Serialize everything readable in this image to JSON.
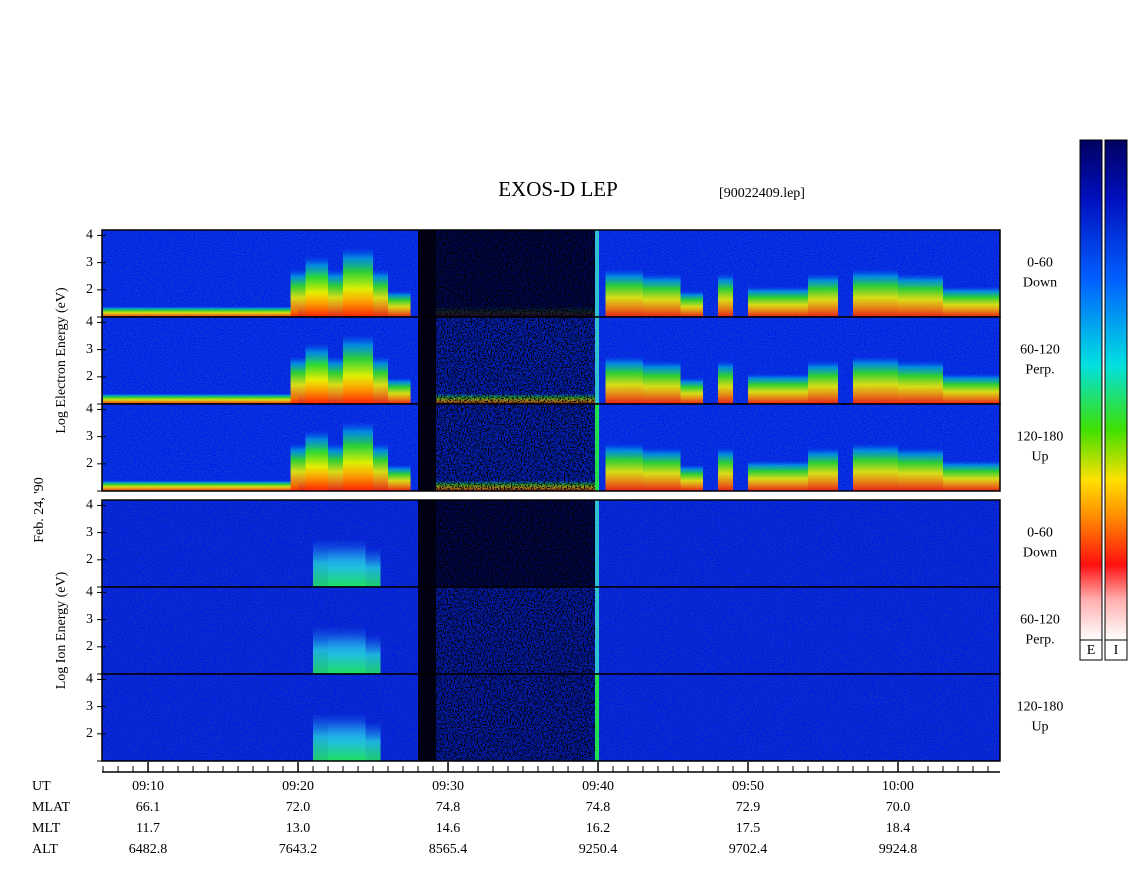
{
  "chart_data": {
    "type": "spectrogram",
    "title": "EXOS-D LEP",
    "subtitle": "[90022409.lep]",
    "date_label": "Feb. 24, '90",
    "xlim": [
      546.93,
      606.8
    ],
    "xticks": [
      {
        "value": 550,
        "label": "09:10"
      },
      {
        "value": 560,
        "label": "09:20"
      },
      {
        "value": 570,
        "label": "09:30"
      },
      {
        "value": 580,
        "label": "09:40"
      },
      {
        "value": 590,
        "label": "09:50"
      },
      {
        "value": 600,
        "label": "10:00"
      }
    ],
    "ylim": [
      1,
      4.2
    ],
    "yticks": [
      2,
      3,
      4
    ],
    "groups": [
      {
        "ylabel": "Log Electron Energy (eV)",
        "panels": [
          {
            "label": [
              "0-60",
              "Down"
            ]
          },
          {
            "label": [
              "60-120",
              "Perp."
            ]
          },
          {
            "label": [
              "120-180",
              "Up"
            ]
          }
        ]
      },
      {
        "ylabel": "Log Ion Energy (eV)",
        "panels": [
          {
            "label": [
              "0-60",
              "Down"
            ]
          },
          {
            "label": [
              "60-120",
              "Perp."
            ]
          },
          {
            "label": [
              "120-180",
              "Up"
            ]
          }
        ]
      }
    ],
    "x_row_label": "UT",
    "ephemeris": [
      {
        "name": "MLAT",
        "values": [
          "66.1",
          "72.0",
          "74.8",
          "74.8",
          "72.9",
          "70.0"
        ]
      },
      {
        "name": "MLT",
        "values": [
          "11.7",
          "13.0",
          "14.6",
          "16.2",
          "17.5",
          "18.4"
        ]
      },
      {
        "name": "ALT",
        "values": [
          "6482.8",
          "7643.2",
          "8565.4",
          "9250.4",
          "9702.4",
          "9924.8"
        ]
      }
    ],
    "colorbars": [
      "E",
      "I"
    ]
  }
}
